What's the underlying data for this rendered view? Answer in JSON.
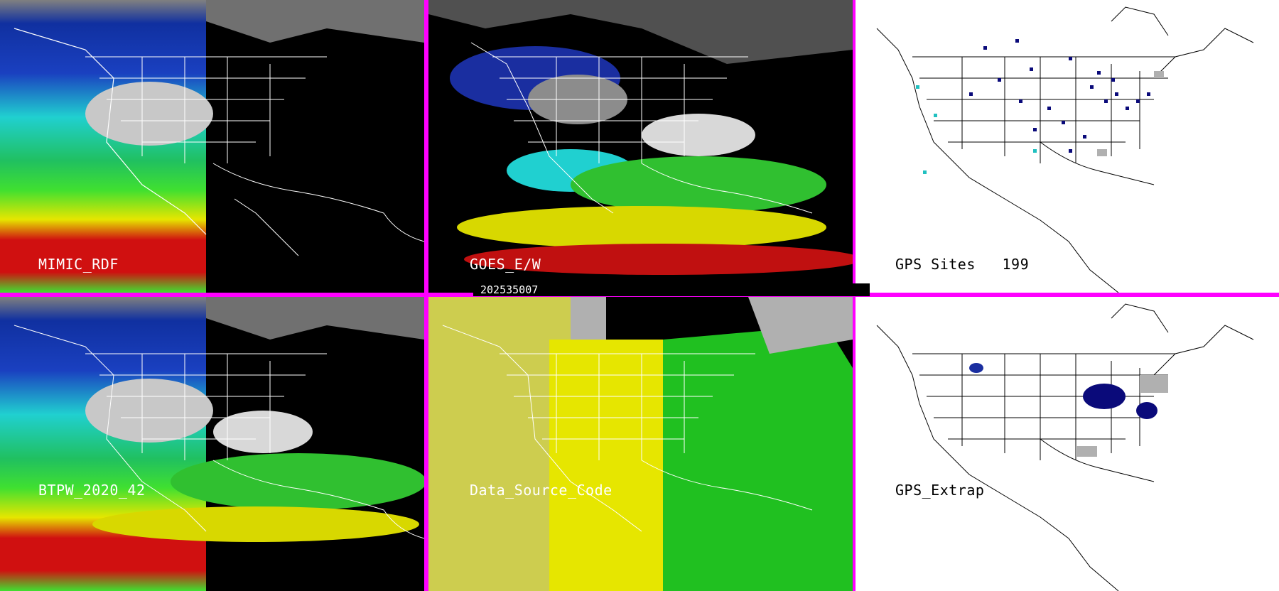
{
  "panels": {
    "mimic": {
      "label": "MIMIC_RDF"
    },
    "goes": {
      "label": "GOES_E/W"
    },
    "gps_sites": {
      "label": "GPS Sites",
      "count": "199"
    },
    "btpw": {
      "label": "BTPW_2020_42"
    },
    "source": {
      "label": "Data_Source_Code"
    },
    "gps_extrap": {
      "label": "GPS_Extrap"
    }
  },
  "timestamp": "202535007",
  "colors": {
    "divider": "#ff00ff",
    "background": "#000000",
    "map_lines": "#ffffff",
    "gps_map_bg": "#ffffff",
    "site_marker": "#0a0a7a",
    "site_marker_alt": "#20c0c0",
    "source_yellow": "#e6e600",
    "source_green": "#20c020",
    "source_gray": "#b0b0b0"
  }
}
